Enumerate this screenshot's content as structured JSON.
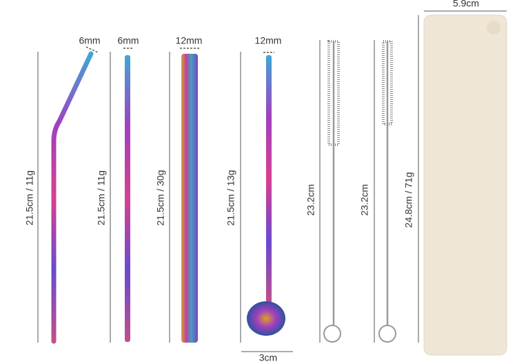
{
  "items": [
    {
      "width_label": "6mm",
      "length_label": "21.5cm / 11g"
    },
    {
      "width_label": "6mm",
      "length_label": "21.5cm / 11g"
    },
    {
      "width_label": "12mm",
      "length_label": "21.5cm / 30g"
    },
    {
      "width_label": "12mm",
      "length_label": "21.5cm / 13g",
      "spoon_label": "3cm"
    },
    {
      "length_label": "23.2cm"
    },
    {
      "length_label": "23.2cm"
    },
    {
      "width_label": "5.9cm",
      "length_label": "24.8cm / 71g"
    }
  ]
}
